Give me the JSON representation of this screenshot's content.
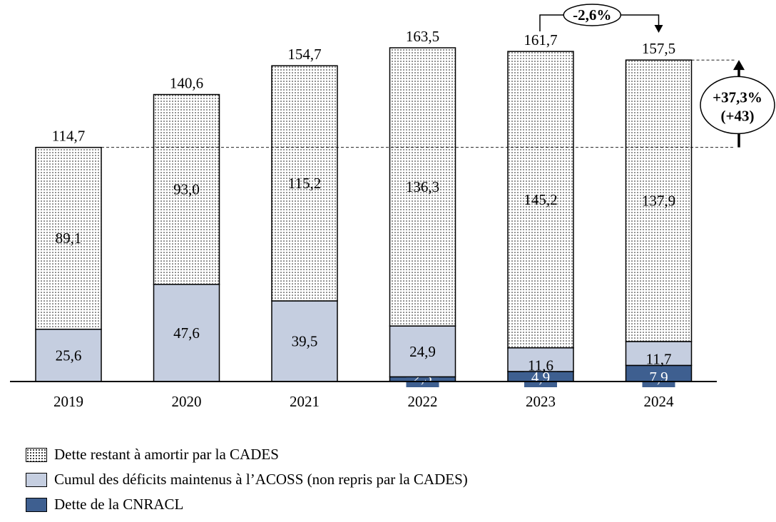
{
  "chart_data": {
    "type": "bar",
    "stacked": true,
    "categories": [
      "2019",
      "2020",
      "2021",
      "2022",
      "2023",
      "2024"
    ],
    "series": [
      {
        "name": "Dette de la CNRACL",
        "color": "#3e5f90",
        "values": [
          null,
          null,
          null,
          2.3,
          4.9,
          7.9
        ],
        "labels": [
          "",
          "",
          "",
          "2,3",
          "4,9",
          "7,9"
        ]
      },
      {
        "name": "Cumul des déficits maintenus à l’ACOSS (non repris par la CADES)",
        "color": "#c5cee0",
        "values": [
          25.6,
          47.6,
          39.5,
          24.9,
          11.6,
          11.7
        ],
        "labels": [
          "25,6",
          "47,6",
          "39,5",
          "24,9",
          "11,6",
          "11,7"
        ]
      },
      {
        "name": "Dette restant à amortir par la CADES",
        "color": "dotted",
        "values": [
          89.1,
          93.0,
          115.2,
          136.3,
          145.2,
          137.9
        ],
        "labels": [
          "89,1",
          "93,0",
          "115,2",
          "136,3",
          "145,2",
          "137,9"
        ]
      }
    ],
    "totals": [
      114.7,
      140.6,
      154.7,
      163.5,
      161.7,
      157.5
    ],
    "total_labels": [
      "114,7",
      "140,6",
      "154,7",
      "163,5",
      "161,7",
      "157,5"
    ],
    "ylim": [
      0,
      163.5
    ],
    "grid": false,
    "legend_position": "bottom-left",
    "annotations": {
      "change_2023_2024": "-2,6%",
      "change_2019_2024_pct": "+37,3%",
      "change_2019_2024_abs": "(+43)"
    }
  },
  "legend": [
    {
      "label": "Dette restant à amortir par la CADES",
      "style": "dotted"
    },
    {
      "label": "Cumul des déficits maintenus à l’ACOSS (non repris par la CADES)",
      "style": "light"
    },
    {
      "label": "Dette de la CNRACL",
      "style": "dark"
    }
  ]
}
